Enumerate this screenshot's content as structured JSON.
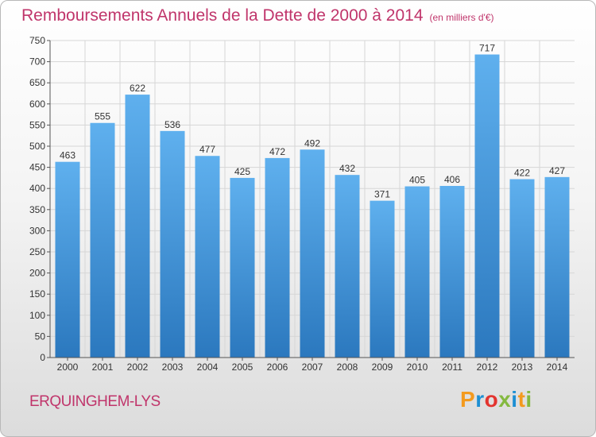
{
  "header": {
    "title": "Remboursements Annuels de la Dette de 2000 à 2014",
    "unit": "(en milliers d'€)"
  },
  "footer": {
    "commune": "ERQUINGHEM-LYS",
    "logo": {
      "letters": [
        "P",
        "r",
        "o",
        "x",
        "i",
        "t",
        "i"
      ],
      "colors": [
        "#f39a1e",
        "#1d8fd3",
        "#e3342f",
        "#84b93f",
        "#1d8fd3",
        "#f39a1e",
        "#84b93f"
      ]
    }
  },
  "chart_data": {
    "type": "bar",
    "title": "Remboursements Annuels de la Dette de 2000 à 2014",
    "subtitle": "(en milliers d'€)",
    "xlabel": "",
    "ylabel": "",
    "categories": [
      "2000",
      "2001",
      "2002",
      "2003",
      "2004",
      "2005",
      "2006",
      "2007",
      "2008",
      "2009",
      "2010",
      "2011",
      "2012",
      "2013",
      "2014"
    ],
    "values": [
      463,
      555,
      622,
      536,
      477,
      425,
      472,
      492,
      432,
      371,
      405,
      406,
      717,
      422,
      427
    ],
    "ylim": [
      0,
      750
    ],
    "yticks": [
      0,
      50,
      100,
      150,
      200,
      250,
      300,
      350,
      400,
      450,
      500,
      550,
      600,
      650,
      700,
      750
    ],
    "grid": true,
    "bar_color_top": "#5fb0ee",
    "bar_color_bottom": "#2b78be",
    "grid_color": "#d6d6d6"
  }
}
